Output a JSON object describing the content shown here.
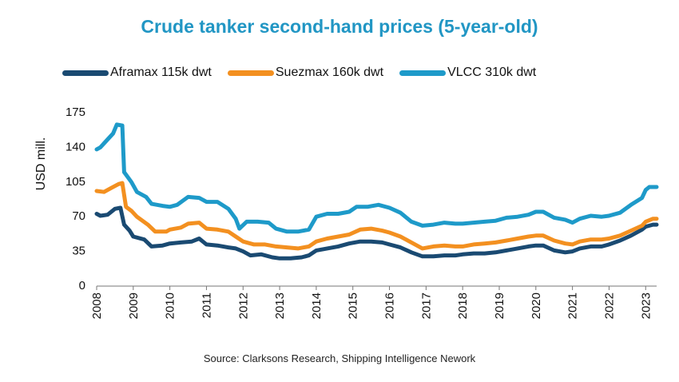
{
  "chart_data": {
    "type": "line",
    "title": "Crude tanker second-hand prices (5-year-old)",
    "ylabel": "USD mill.",
    "xlabel": "",
    "source": "Source: Clarksons Research, Shipping Intelligence Nework",
    "xlim": [
      2008,
      2023.3
    ],
    "ylim": [
      0,
      175
    ],
    "y_ticks": [
      0,
      35,
      70,
      105,
      140,
      175
    ],
    "x_ticks": [
      2008,
      2009,
      2010,
      2011,
      2012,
      2013,
      2014,
      2015,
      2016,
      2017,
      2018,
      2019,
      2020,
      2021,
      2022,
      2023
    ],
    "grid": false,
    "legend_position": "top",
    "series": [
      {
        "name": "Aframax 115k dwt",
        "color": "#1a4a72",
        "points": [
          [
            2008.0,
            73
          ],
          [
            2008.1,
            71
          ],
          [
            2008.3,
            72
          ],
          [
            2008.5,
            78
          ],
          [
            2008.65,
            79
          ],
          [
            2008.75,
            62
          ],
          [
            2008.9,
            56
          ],
          [
            2009.0,
            50
          ],
          [
            2009.3,
            47
          ],
          [
            2009.5,
            40
          ],
          [
            2009.8,
            41
          ],
          [
            2010.0,
            43
          ],
          [
            2010.3,
            44
          ],
          [
            2010.6,
            45
          ],
          [
            2010.8,
            48
          ],
          [
            2011.0,
            42
          ],
          [
            2011.3,
            41
          ],
          [
            2011.6,
            39
          ],
          [
            2011.8,
            38
          ],
          [
            2012.0,
            35
          ],
          [
            2012.2,
            31
          ],
          [
            2012.5,
            32
          ],
          [
            2012.8,
            29
          ],
          [
            2013.0,
            28
          ],
          [
            2013.3,
            28
          ],
          [
            2013.6,
            29
          ],
          [
            2013.8,
            31
          ],
          [
            2014.0,
            36
          ],
          [
            2014.3,
            38
          ],
          [
            2014.6,
            40
          ],
          [
            2014.9,
            43
          ],
          [
            2015.2,
            45
          ],
          [
            2015.5,
            45
          ],
          [
            2015.8,
            44
          ],
          [
            2016.0,
            42
          ],
          [
            2016.3,
            39
          ],
          [
            2016.6,
            34
          ],
          [
            2016.9,
            30
          ],
          [
            2017.2,
            30
          ],
          [
            2017.5,
            31
          ],
          [
            2017.8,
            31
          ],
          [
            2018.0,
            32
          ],
          [
            2018.3,
            33
          ],
          [
            2018.6,
            33
          ],
          [
            2018.9,
            34
          ],
          [
            2019.2,
            36
          ],
          [
            2019.5,
            38
          ],
          [
            2019.8,
            40
          ],
          [
            2020.0,
            41
          ],
          [
            2020.2,
            41
          ],
          [
            2020.5,
            36
          ],
          [
            2020.8,
            34
          ],
          [
            2021.0,
            35
          ],
          [
            2021.2,
            38
          ],
          [
            2021.5,
            40
          ],
          [
            2021.8,
            40
          ],
          [
            2022.0,
            42
          ],
          [
            2022.3,
            46
          ],
          [
            2022.6,
            51
          ],
          [
            2022.9,
            57
          ],
          [
            2023.0,
            60
          ],
          [
            2023.2,
            62
          ],
          [
            2023.3,
            62
          ]
        ]
      },
      {
        "name": "Suezmax 160k dwt",
        "color": "#f39020",
        "points": [
          [
            2008.0,
            96
          ],
          [
            2008.2,
            95
          ],
          [
            2008.4,
            99
          ],
          [
            2008.6,
            103
          ],
          [
            2008.7,
            104
          ],
          [
            2008.8,
            80
          ],
          [
            2008.95,
            76
          ],
          [
            2009.1,
            70
          ],
          [
            2009.4,
            62
          ],
          [
            2009.6,
            55
          ],
          [
            2009.9,
            55
          ],
          [
            2010.0,
            57
          ],
          [
            2010.3,
            59
          ],
          [
            2010.5,
            63
          ],
          [
            2010.8,
            64
          ],
          [
            2011.0,
            58
          ],
          [
            2011.3,
            57
          ],
          [
            2011.6,
            55
          ],
          [
            2011.8,
            50
          ],
          [
            2012.0,
            45
          ],
          [
            2012.3,
            42
          ],
          [
            2012.6,
            42
          ],
          [
            2012.9,
            40
          ],
          [
            2013.2,
            39
          ],
          [
            2013.5,
            38
          ],
          [
            2013.8,
            40
          ],
          [
            2014.0,
            45
          ],
          [
            2014.3,
            48
          ],
          [
            2014.6,
            50
          ],
          [
            2014.9,
            52
          ],
          [
            2015.2,
            57
          ],
          [
            2015.5,
            58
          ],
          [
            2015.8,
            56
          ],
          [
            2016.0,
            54
          ],
          [
            2016.3,
            50
          ],
          [
            2016.6,
            44
          ],
          [
            2016.9,
            38
          ],
          [
            2017.2,
            40
          ],
          [
            2017.5,
            41
          ],
          [
            2017.8,
            40
          ],
          [
            2018.0,
            40
          ],
          [
            2018.3,
            42
          ],
          [
            2018.6,
            43
          ],
          [
            2018.9,
            44
          ],
          [
            2019.2,
            46
          ],
          [
            2019.5,
            48
          ],
          [
            2019.8,
            50
          ],
          [
            2020.0,
            51
          ],
          [
            2020.2,
            51
          ],
          [
            2020.5,
            46
          ],
          [
            2020.8,
            43
          ],
          [
            2021.0,
            42
          ],
          [
            2021.2,
            45
          ],
          [
            2021.5,
            47
          ],
          [
            2021.8,
            47
          ],
          [
            2022.0,
            48
          ],
          [
            2022.3,
            51
          ],
          [
            2022.6,
            56
          ],
          [
            2022.9,
            61
          ],
          [
            2023.0,
            65
          ],
          [
            2023.2,
            68
          ],
          [
            2023.3,
            68
          ]
        ]
      },
      {
        "name": "VLCC 310k dwt",
        "color": "#1e9ac9",
        "points": [
          [
            2008.0,
            138
          ],
          [
            2008.1,
            140
          ],
          [
            2008.3,
            148
          ],
          [
            2008.45,
            154
          ],
          [
            2008.55,
            163
          ],
          [
            2008.7,
            162
          ],
          [
            2008.75,
            115
          ],
          [
            2008.95,
            105
          ],
          [
            2009.1,
            95
          ],
          [
            2009.35,
            90
          ],
          [
            2009.5,
            83
          ],
          [
            2009.8,
            81
          ],
          [
            2010.0,
            80
          ],
          [
            2010.2,
            82
          ],
          [
            2010.5,
            90
          ],
          [
            2010.8,
            89
          ],
          [
            2011.0,
            85
          ],
          [
            2011.3,
            85
          ],
          [
            2011.6,
            78
          ],
          [
            2011.8,
            68
          ],
          [
            2011.9,
            58
          ],
          [
            2012.1,
            65
          ],
          [
            2012.4,
            65
          ],
          [
            2012.7,
            64
          ],
          [
            2012.9,
            58
          ],
          [
            2013.2,
            55
          ],
          [
            2013.5,
            55
          ],
          [
            2013.8,
            57
          ],
          [
            2014.0,
            70
          ],
          [
            2014.3,
            73
          ],
          [
            2014.6,
            73
          ],
          [
            2014.9,
            75
          ],
          [
            2015.1,
            80
          ],
          [
            2015.4,
            80
          ],
          [
            2015.7,
            82
          ],
          [
            2016.0,
            79
          ],
          [
            2016.3,
            74
          ],
          [
            2016.6,
            65
          ],
          [
            2016.9,
            61
          ],
          [
            2017.2,
            62
          ],
          [
            2017.5,
            64
          ],
          [
            2017.8,
            63
          ],
          [
            2018.0,
            63
          ],
          [
            2018.3,
            64
          ],
          [
            2018.6,
            65
          ],
          [
            2018.9,
            66
          ],
          [
            2019.2,
            69
          ],
          [
            2019.5,
            70
          ],
          [
            2019.8,
            72
          ],
          [
            2020.0,
            75
          ],
          [
            2020.2,
            75
          ],
          [
            2020.5,
            69
          ],
          [
            2020.8,
            67
          ],
          [
            2021.0,
            64
          ],
          [
            2021.2,
            68
          ],
          [
            2021.5,
            71
          ],
          [
            2021.8,
            70
          ],
          [
            2022.0,
            71
          ],
          [
            2022.3,
            74
          ],
          [
            2022.6,
            82
          ],
          [
            2022.9,
            89
          ],
          [
            2023.0,
            97
          ],
          [
            2023.1,
            100
          ],
          [
            2023.3,
            100
          ]
        ]
      }
    ]
  }
}
